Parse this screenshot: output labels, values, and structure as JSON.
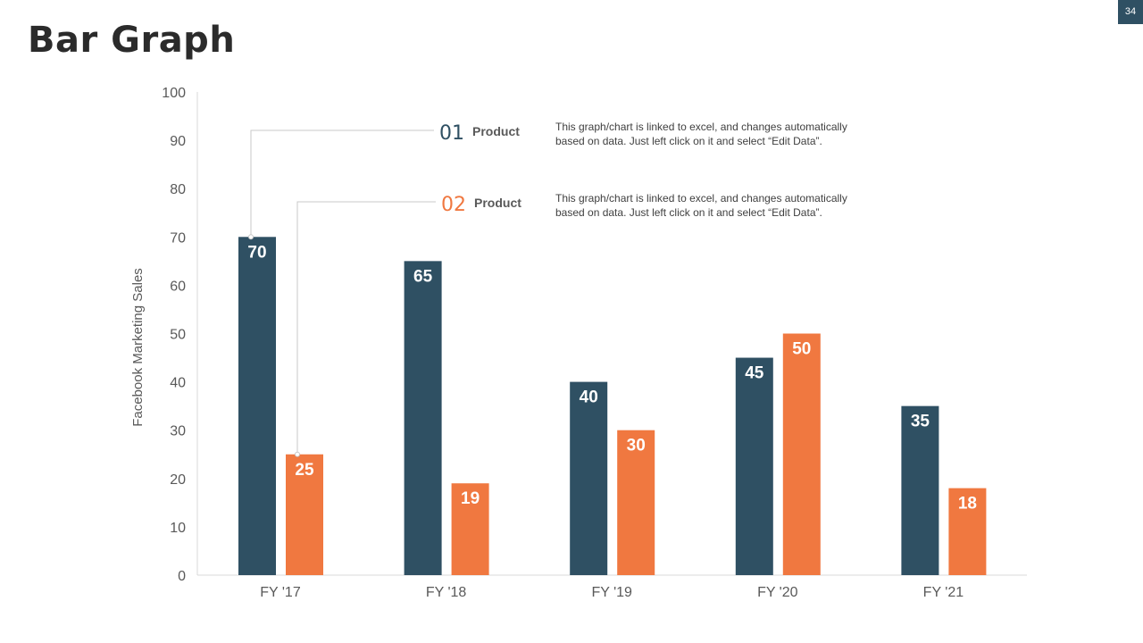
{
  "page": {
    "title": "Bar Graph",
    "number": "34"
  },
  "colors": {
    "series1": "#2f5063",
    "series2": "#f07840",
    "axis": "#d9d9d9",
    "tick_text": "#595959",
    "leader_line": "#c8c8c8"
  },
  "legend": [
    {
      "number": "01",
      "label": "Product",
      "description_line1": "This graph/chart is linked to excel, and changes automatically",
      "description_line2": "based on data. Just left click on it and select “Edit Data”."
    },
    {
      "number": "02",
      "label": "Product",
      "description_line1": "This graph/chart is linked to excel, and changes automatically",
      "description_line2": "based on data. Just left click on it and select “Edit Data”."
    }
  ],
  "chart_data": {
    "type": "bar",
    "title": "",
    "xlabel": "",
    "ylabel": "Facebook Marketing Sales",
    "categories": [
      "FY '17",
      "FY '18",
      "FY '19",
      "FY '20",
      "FY '21"
    ],
    "series": [
      {
        "name": "Product 01",
        "values": [
          70,
          65,
          40,
          45,
          35
        ]
      },
      {
        "name": "Product 02",
        "values": [
          25,
          19,
          30,
          50,
          18
        ]
      }
    ],
    "ylim": [
      0,
      100
    ],
    "yticks": [
      0,
      10,
      20,
      30,
      40,
      50,
      60,
      70,
      80,
      90,
      100
    ],
    "grid": false,
    "data_labels": true
  }
}
